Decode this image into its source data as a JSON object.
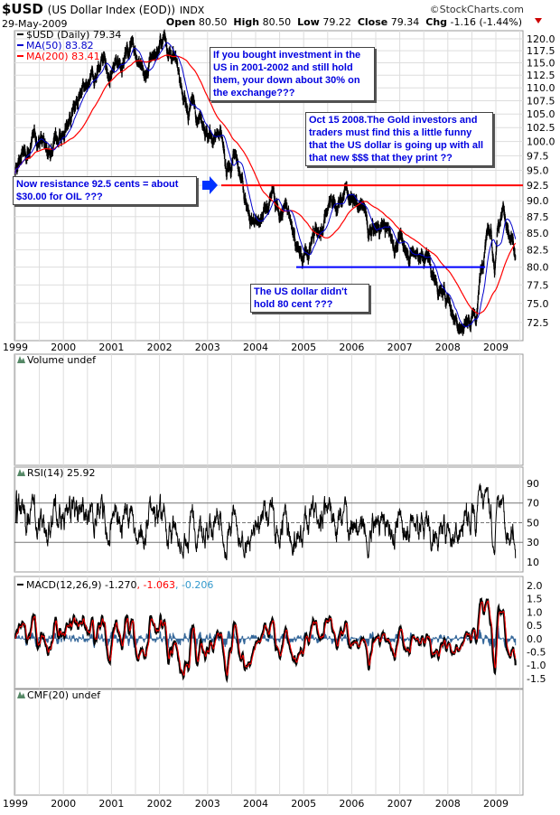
{
  "header": {
    "symbol": "$USD",
    "name": "(US Dollar Index (EOD))",
    "exchange": "INDX",
    "copyright": "©StockCharts.com",
    "date": "29-May-2009",
    "open_label": "Open",
    "open": "80.50",
    "high_label": "High",
    "high": "80.50",
    "low_label": "Low",
    "low": "79.22",
    "close_label": "Close",
    "close": "79.34",
    "chg_label": "Chg",
    "chg": "-1.16 (-1.44%)"
  },
  "colors": {
    "price": "#000000",
    "ma50": "#0000cc",
    "ma200": "#ff0000",
    "macd_signal": "#ff0000",
    "histogram": "#336699",
    "note_text": "#0000e0"
  },
  "annotations": [
    {
      "text": "If you bought investment in the US in  2001-2002 and still hold them, your down about 30%  on the exchange???"
    },
    {
      "text": "Oct 15 2008.The Gold investors and traders must find this a little funny that the US dollar is going up with all that new $$$ that they print ??"
    },
    {
      "text": "Now resistance 92.5 cents = about $30.00 for OIL ???"
    },
    {
      "text": "The US dollar didn't hold 80 cent ???"
    }
  ],
  "chart_data": [
    {
      "type": "line",
      "title": "$USD (Daily) 79.34",
      "scale": "log",
      "legend": [
        "$USD (Daily) 79.34",
        "MA(50) 83.82",
        "MA(200) 83.41"
      ],
      "x_ticks": [
        "1999",
        "2000",
        "2001",
        "2002",
        "2003",
        "2004",
        "2005",
        "2006",
        "2007",
        "2008",
        "2009"
      ],
      "y_ticks": [
        "120.0",
        "117.5",
        "115.0",
        "112.5",
        "110.0",
        "107.5",
        "105.0",
        "102.5",
        "100.0",
        "97.5",
        "95.0",
        "92.5",
        "90.0",
        "87.5",
        "85.0",
        "82.5",
        "80.0",
        "77.5",
        "75.0",
        "72.5"
      ],
      "ylim": [
        70.5,
        121.5
      ],
      "resistance_line": 92.5,
      "support_line": 80.0,
      "x": [
        1999.0,
        1999.1,
        1999.3,
        1999.5,
        1999.7,
        1999.9,
        2000.0,
        2000.2,
        2000.4,
        2000.5,
        2000.7,
        2000.85,
        2000.95,
        2001.1,
        2001.3,
        2001.45,
        2001.6,
        2001.7,
        2001.85,
        2002.0,
        2002.1,
        2002.3,
        2002.45,
        2002.55,
        2002.7,
        2002.9,
        2003.0,
        2003.15,
        2003.3,
        2003.4,
        2003.55,
        2003.7,
        2003.8,
        2003.95,
        2004.1,
        2004.2,
        2004.35,
        2004.5,
        2004.65,
        2004.75,
        2004.9,
        2004.98,
        2005.1,
        2005.25,
        2005.35,
        2005.5,
        2005.6,
        2005.75,
        2005.85,
        2005.95,
        2006.1,
        2006.25,
        2006.35,
        2006.5,
        2006.65,
        2006.8,
        2006.9,
        2007.0,
        2007.2,
        2007.35,
        2007.5,
        2007.6,
        2007.75,
        2007.85,
        2008.0,
        2008.15,
        2008.3,
        2008.45,
        2008.6,
        2008.7,
        2008.8,
        2008.9,
        2008.97,
        2009.05,
        2009.15,
        2009.25,
        2009.35,
        2009.41
      ],
      "values": [
        94,
        97,
        99,
        101,
        99,
        101,
        101,
        106,
        108,
        108,
        112,
        117,
        111,
        114,
        117,
        120,
        115,
        112,
        116,
        118,
        120,
        116,
        110,
        106,
        107,
        105,
        102,
        101,
        99,
        93,
        98,
        93,
        90,
        87,
        86,
        89,
        91,
        88,
        89,
        87,
        82,
        81,
        83,
        85,
        85,
        89,
        90,
        89,
        92,
        91,
        90,
        89,
        85,
        86,
        86,
        85,
        83,
        84,
        83,
        82,
        81,
        82,
        78,
        76,
        76,
        73,
        72,
        73,
        73,
        80,
        86,
        87,
        79,
        86,
        89,
        84,
        83,
        79.34
      ]
    },
    {
      "type": "bar",
      "title": "Volume undef"
    },
    {
      "type": "line",
      "title": "RSI(14) 25.92",
      "y_ticks": [
        "90",
        "70",
        "50",
        "30",
        "10"
      ],
      "ylim": [
        0,
        100
      ],
      "levels": [
        70,
        50,
        30
      ]
    },
    {
      "type": "line",
      "title": "MACD(12,26,9)",
      "values_text": {
        "macd": "-1.270",
        "signal": "-1.063",
        "histogram": "-0.206"
      },
      "y_ticks": [
        "2.0",
        "1.5",
        "1.0",
        "0.5",
        "0.0",
        "-0.5",
        "-1.0",
        "-1.5"
      ],
      "ylim": [
        -1.8,
        2.1
      ]
    },
    {
      "type": "line",
      "title": "CMF(20) undef"
    }
  ]
}
